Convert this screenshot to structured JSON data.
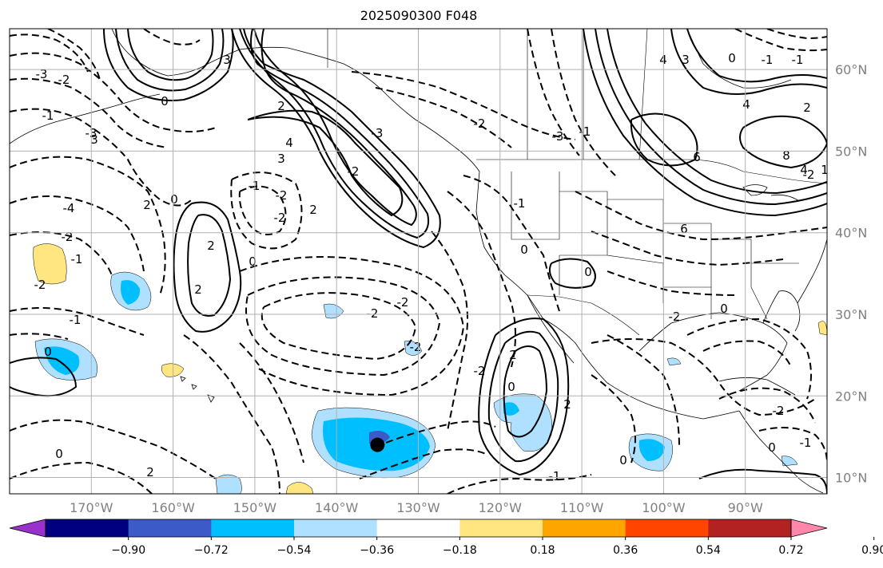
{
  "title": "2025090300 F048",
  "map": {
    "projection": "equirectangular",
    "extent_lon": [
      -180,
      -80
    ],
    "extent_lat": [
      8,
      65
    ],
    "lat_ticks": [
      "10°N",
      "20°N",
      "30°N",
      "40°N",
      "50°N",
      "60°N"
    ],
    "lon_ticks": [
      "170°W",
      "160°W",
      "150°W",
      "140°W",
      "130°W",
      "120°W",
      "110°W",
      "100°W",
      "90°W"
    ],
    "grid": true,
    "grid_color": "#b0b0b0",
    "land_outline_color": "#000000"
  },
  "colorbar": {
    "tick_labels": [
      "−0.90",
      "−0.72",
      "−0.54",
      "−0.36",
      "−0.18",
      "0.18",
      "0.36",
      "0.54",
      "0.72",
      "0.90"
    ],
    "colors": [
      "#9932cc",
      "#000080",
      "#3c5ac8",
      "#00bfff",
      "#afe0ff",
      "#ffffff",
      "#ffe680",
      "#ffa500",
      "#ff4500",
      "#b22222",
      "#ff88aa"
    ],
    "extend": "both"
  },
  "contour_labels": [
    "-3",
    "-2",
    "-1",
    "3",
    "-4",
    "-2",
    "-1",
    "-2",
    "0",
    "2",
    "2",
    "2",
    "-2",
    "-2",
    "-1",
    "0",
    "-1",
    "-2",
    "-2",
    "-2",
    "0",
    "-3",
    "-2",
    "2",
    "2",
    "3",
    "4",
    "3",
    "0",
    "-3",
    "3",
    "4",
    "0",
    "2",
    "4",
    "8",
    "6",
    "2",
    "0",
    "2",
    "0",
    "0",
    "2",
    "0",
    "-2",
    "-2",
    "0",
    "-1",
    "0",
    "-1",
    "-3",
    "-1",
    "-2",
    "1",
    "-2",
    "0",
    "-1",
    "-2",
    "4",
    "6",
    "-1",
    "-1"
  ],
  "marker": {
    "label": "storm center",
    "lon": -135,
    "lat": 14
  }
}
